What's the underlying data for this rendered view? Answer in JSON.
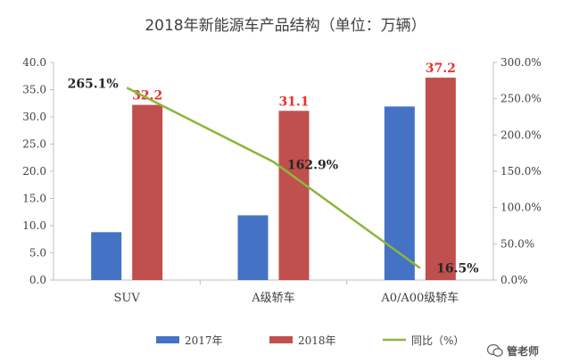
{
  "chart_data": {
    "type": "bar",
    "title": "2018年新能源车产品结构（单位：万辆）",
    "categories": [
      "SUV",
      "A级轿车",
      "A0/A00级轿车"
    ],
    "series": [
      {
        "name": "2017年",
        "type": "bar",
        "axis": "left",
        "color": "#4472C4",
        "values": [
          8.8,
          11.9,
          31.9
        ]
      },
      {
        "name": "2018年",
        "type": "bar",
        "axis": "left",
        "color": "#C0504D",
        "values": [
          32.2,
          31.1,
          37.2
        ],
        "labels": [
          "32.2",
          "31.1",
          "37.2"
        ]
      },
      {
        "name": "同比（%）",
        "type": "line",
        "axis": "right",
        "color": "#8DB63C",
        "values": [
          265.1,
          162.9,
          16.5
        ],
        "labels": [
          "265.1%",
          "162.9%",
          "16.5%"
        ]
      }
    ],
    "ylim": [
      0,
      40
    ],
    "y_ticks": [
      "0.0",
      "5.0",
      "10.0",
      "15.0",
      "20.0",
      "25.0",
      "30.0",
      "35.0",
      "40.0"
    ],
    "y2lim": [
      0,
      300
    ],
    "y2_ticks": [
      "0.0%",
      "50.0%",
      "100.0%",
      "150.0%",
      "200.0%",
      "250.0%",
      "300.0%"
    ],
    "grid": false,
    "legend_position": "bottom"
  },
  "watermark": {
    "text": "管老师"
  }
}
